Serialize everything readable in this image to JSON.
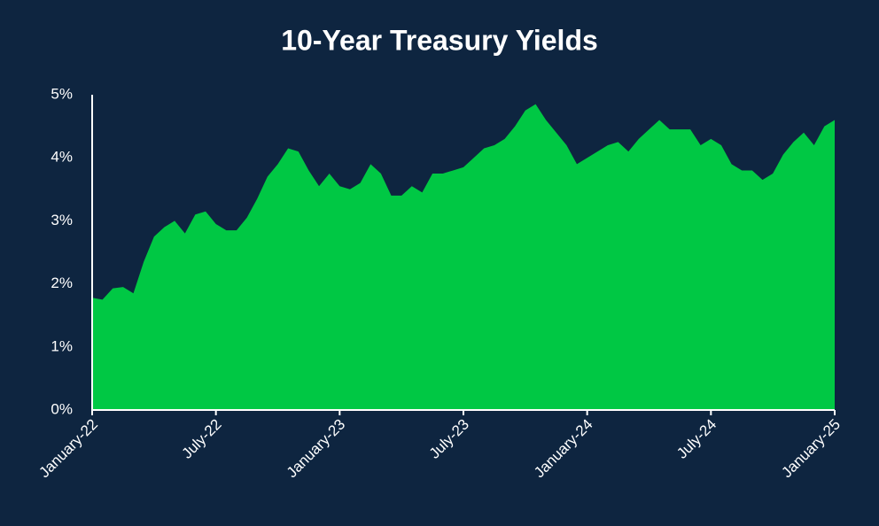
{
  "chart_data": {
    "type": "area",
    "title": "10-Year Treasury Yields",
    "categories": [
      "January-22",
      null,
      null,
      null,
      null,
      null,
      null,
      null,
      null,
      null,
      null,
      null,
      "July-22",
      null,
      null,
      null,
      null,
      null,
      null,
      null,
      null,
      null,
      null,
      null,
      "January-23",
      null,
      null,
      null,
      null,
      null,
      null,
      null,
      null,
      null,
      null,
      null,
      "July-23",
      null,
      null,
      null,
      null,
      null,
      null,
      null,
      null,
      null,
      null,
      null,
      "January-24",
      null,
      null,
      null,
      null,
      null,
      null,
      null,
      null,
      null,
      null,
      null,
      "July-24",
      null,
      null,
      null,
      null,
      null,
      null,
      null,
      null,
      null,
      null,
      null,
      "January-25"
    ],
    "values": [
      1.78,
      1.75,
      1.93,
      1.95,
      1.85,
      2.35,
      2.75,
      2.9,
      3.0,
      2.8,
      3.1,
      3.15,
      2.95,
      2.85,
      2.85,
      3.05,
      3.35,
      3.7,
      3.9,
      4.15,
      4.1,
      3.8,
      3.55,
      3.75,
      3.55,
      3.5,
      3.6,
      3.9,
      3.75,
      3.4,
      3.4,
      3.55,
      3.45,
      3.75,
      3.75,
      3.8,
      3.85,
      4.0,
      4.15,
      4.2,
      4.3,
      4.5,
      4.75,
      4.85,
      4.6,
      4.4,
      4.2,
      3.9,
      4.0,
      4.1,
      4.2,
      4.25,
      4.1,
      4.3,
      4.45,
      4.6,
      4.45,
      4.45,
      4.45,
      4.2,
      4.3,
      4.2,
      3.9,
      3.8,
      3.8,
      3.65,
      3.75,
      4.05,
      4.25,
      4.4,
      4.2,
      4.5,
      4.6
    ],
    "color": "#00c844",
    "ylim": [
      0,
      5
    ],
    "yticks": [
      {
        "value": 0,
        "label": "0%"
      },
      {
        "value": 1,
        "label": "1%"
      },
      {
        "value": 2,
        "label": "2%"
      },
      {
        "value": 3,
        "label": "3%"
      },
      {
        "value": 4,
        "label": "4%"
      },
      {
        "value": 5,
        "label": "5%"
      }
    ],
    "grid": false
  }
}
